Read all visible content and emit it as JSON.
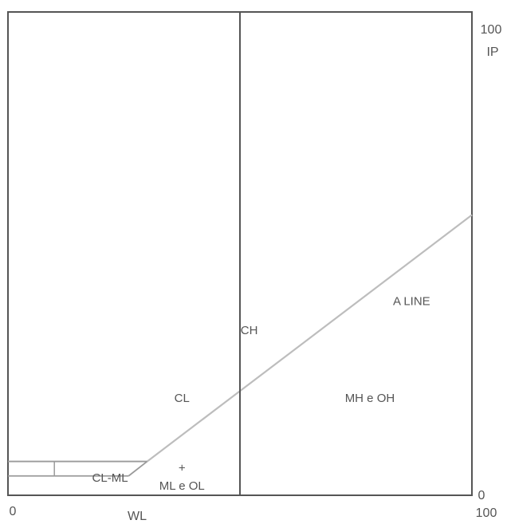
{
  "chart_data": {
    "type": "line",
    "title": "",
    "xlabel": "WL",
    "ylabel": "IP",
    "xlim": [
      0,
      100
    ],
    "ylim": [
      0,
      100
    ],
    "x_ticks": [
      "0",
      "100"
    ],
    "y_ticks": [
      "0",
      "100"
    ],
    "grid": false,
    "series": [
      {
        "name": "A LINE",
        "x": [
          30,
          100
        ],
        "y": [
          7,
          58
        ]
      },
      {
        "name": "",
        "x": [
          0,
          30
        ],
        "y": [
          7,
          7
        ]
      },
      {
        "name": "",
        "x": [
          0,
          26
        ],
        "y": [
          4,
          4
        ]
      },
      {
        "name": "",
        "x": [
          26,
          30
        ],
        "y": [
          4,
          7
        ]
      }
    ],
    "vertical_lines": [
      {
        "x": 50,
        "y": [
          0,
          100
        ]
      },
      {
        "x": 10,
        "y": [
          4,
          7
        ]
      }
    ],
    "regions": [
      {
        "label": "CH",
        "x": 52,
        "y": 34
      },
      {
        "label": "A LINE",
        "x": 87,
        "y": 40
      },
      {
        "label": "CL",
        "x": 37.5,
        "y": 20
      },
      {
        "label": "MH e OH",
        "x": 78,
        "y": 20
      },
      {
        "label": "CL-ML",
        "x": 22,
        "y": 3.5
      },
      {
        "label": "+",
        "x": 37.5,
        "y": 5.5
      },
      {
        "label": "ML e OL",
        "x": 37.5,
        "y": 1.8
      }
    ]
  }
}
